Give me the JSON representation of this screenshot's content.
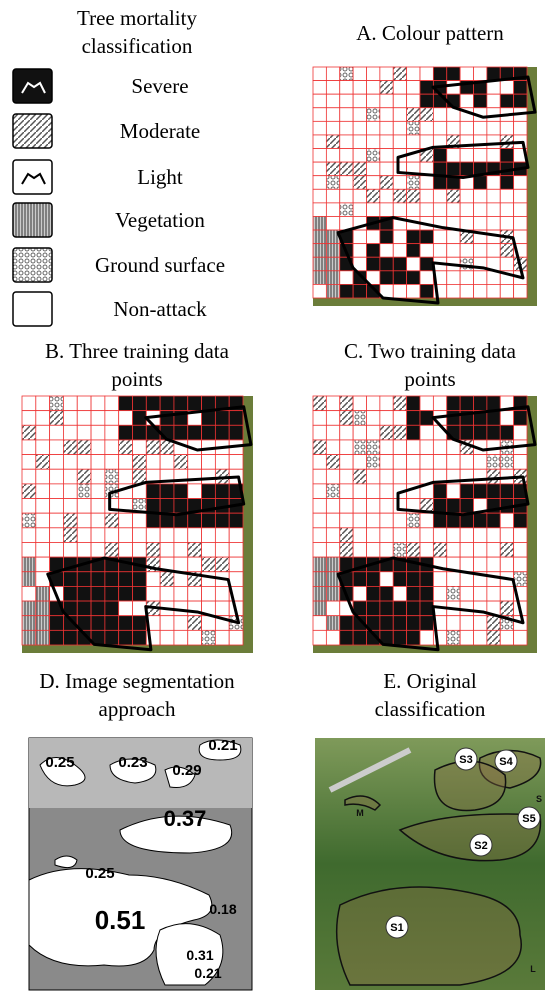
{
  "legend": {
    "title": "Tree mortality classification",
    "items": [
      "Severe",
      "Moderate",
      "Light",
      "Vegetation",
      "Ground surface",
      "Non-attack"
    ]
  },
  "panels": [
    {
      "title": "A. Colour pattern"
    },
    {
      "title": "B. Three training data points"
    },
    {
      "title": "C. Two training data points"
    },
    {
      "title": "D. Image segmentation approach"
    },
    {
      "title": "E. Original classification"
    }
  ],
  "segmentation_labels": [
    "0.25",
    "0.23",
    "0.21",
    "0.29",
    "0.37",
    "0.25",
    "0.51",
    "0.18",
    "0.31",
    "0.21"
  ],
  "original_labels": [
    "S4",
    "S3",
    "S5",
    "S2",
    "S1",
    "M",
    "L",
    "S"
  ]
}
